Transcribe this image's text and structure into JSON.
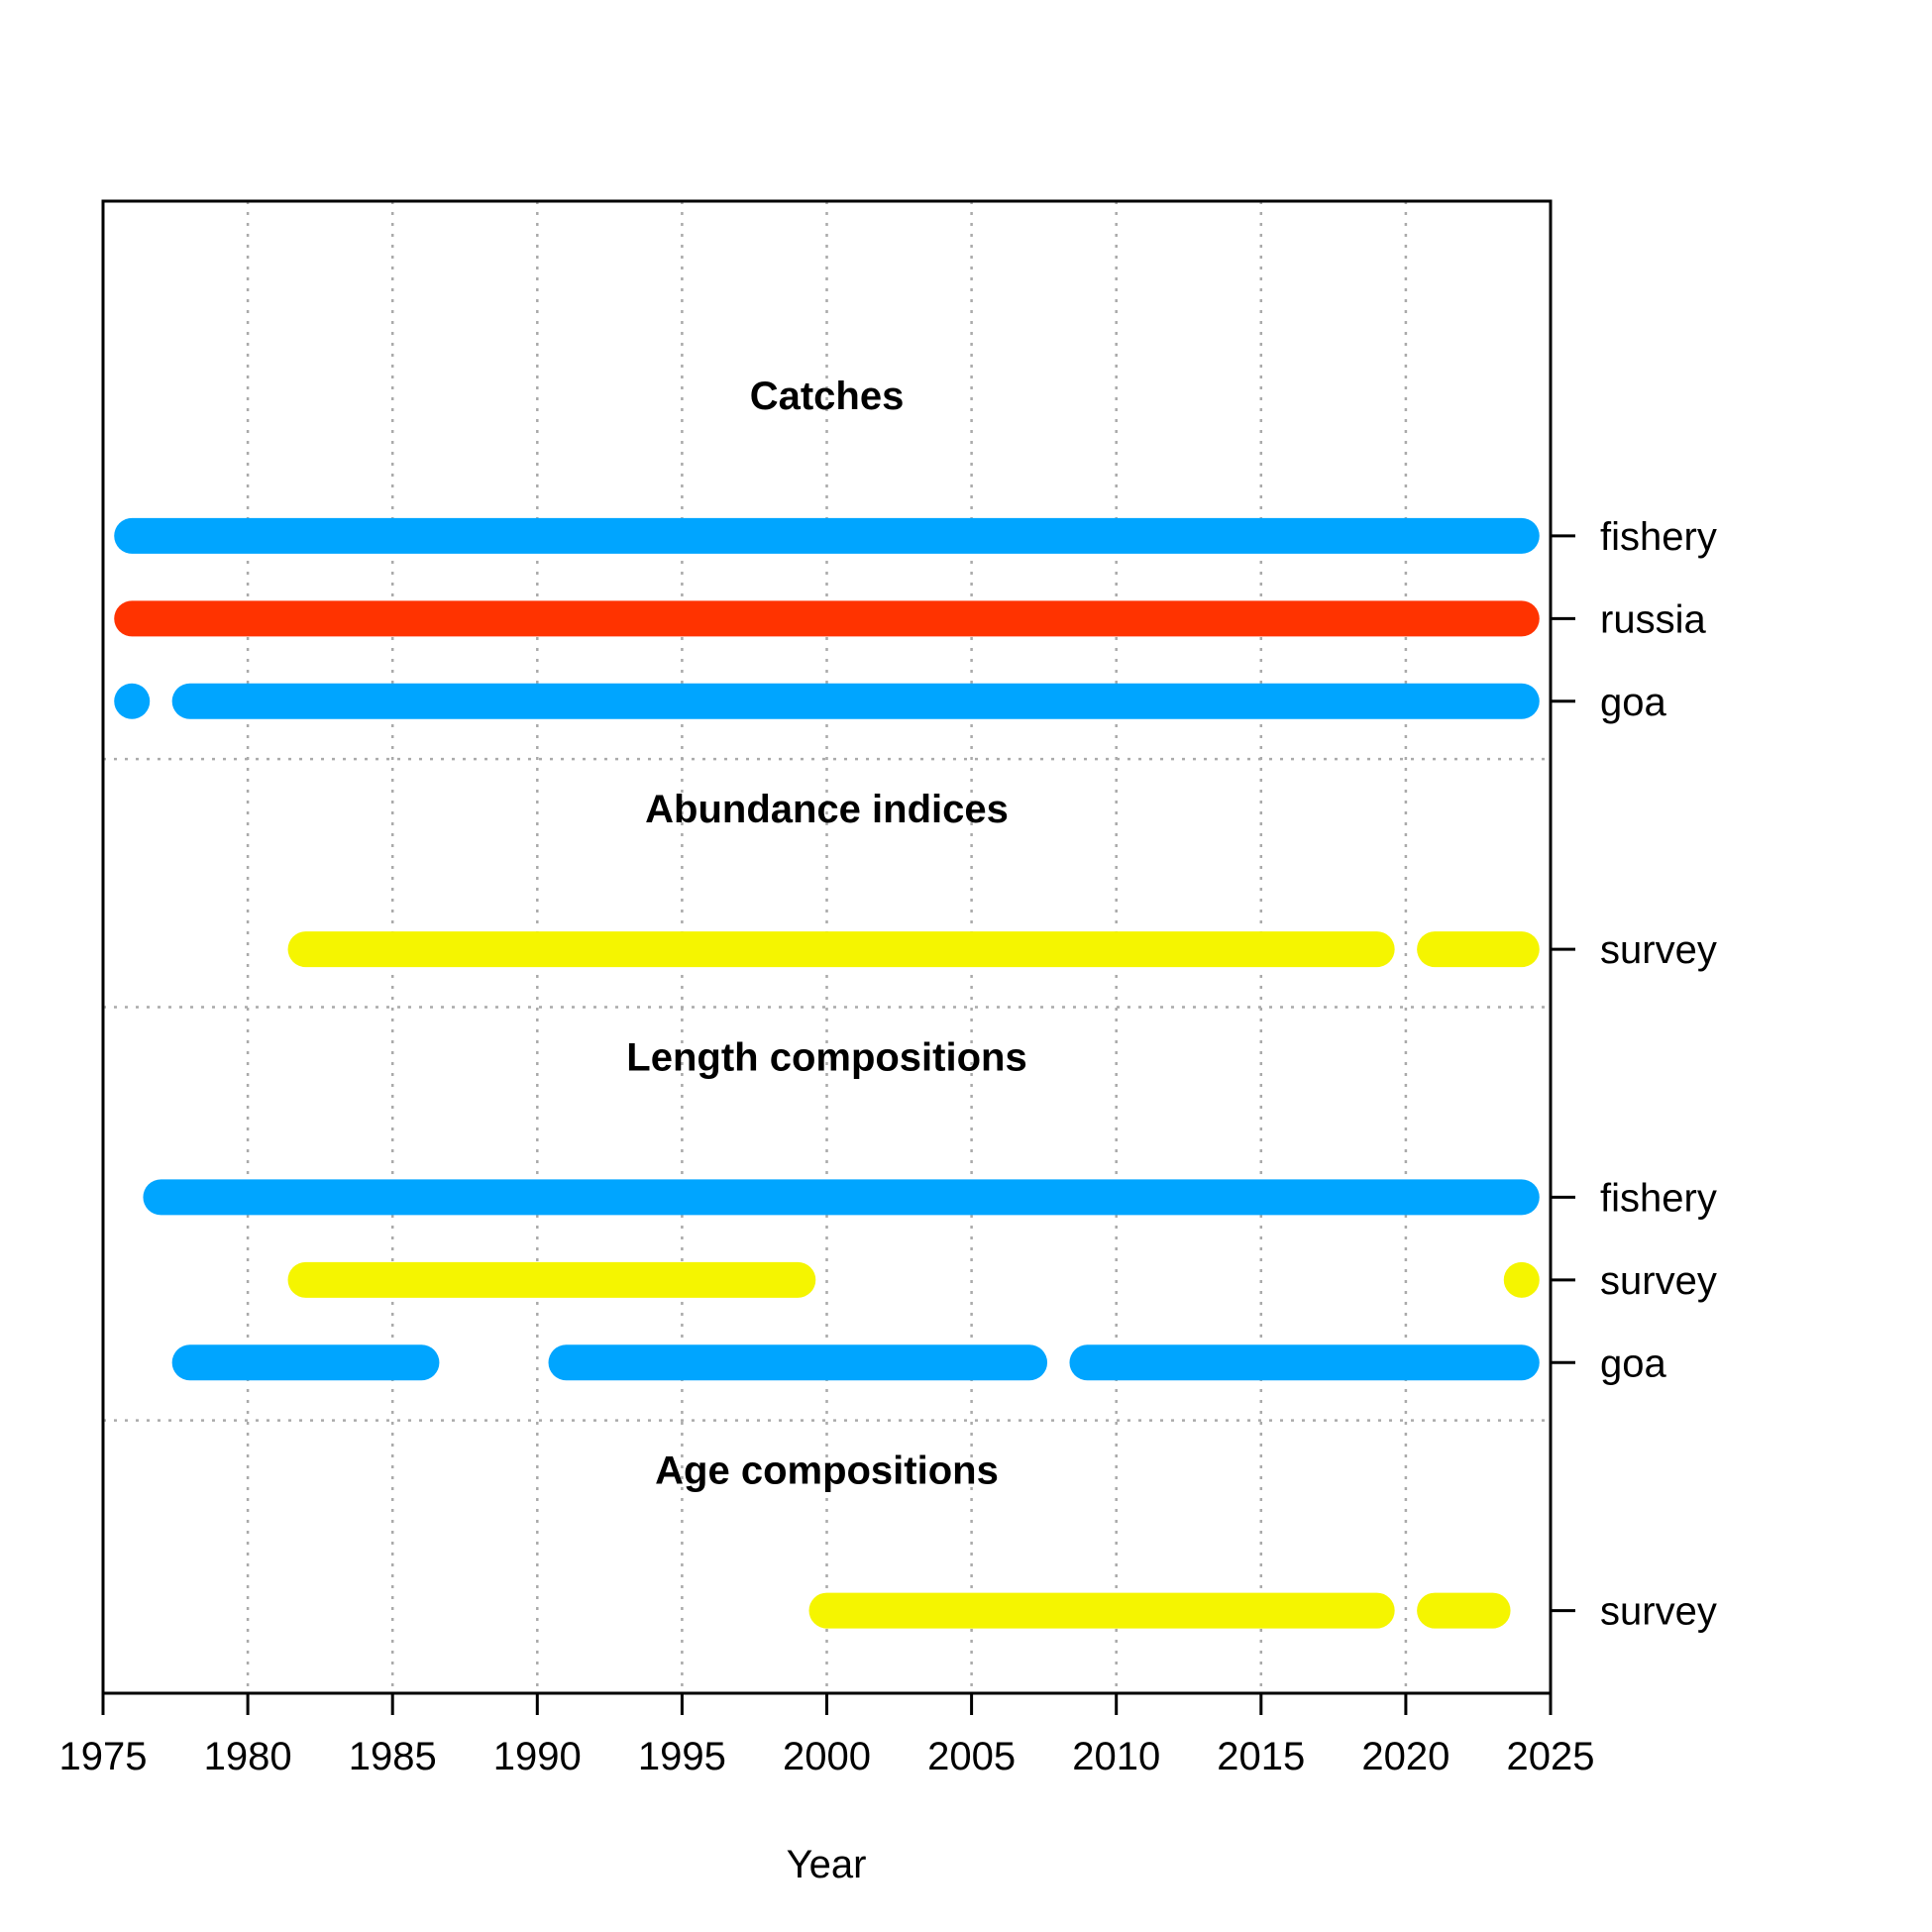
{
  "chart_data": {
    "type": "timeline",
    "xlabel": "Year",
    "xlim": [
      1975,
      2025
    ],
    "x_ticks": [
      "1975",
      "1980",
      "1985",
      "1990",
      "1995",
      "2000",
      "2005",
      "2010",
      "2015",
      "2020",
      "2025"
    ],
    "grid": true,
    "groups": [
      {
        "title": "Catches",
        "rows": [
          {
            "label": "fishery",
            "color": "#00A5FF",
            "segments": [
              [
                1976,
                2024
              ]
            ]
          },
          {
            "label": "russia",
            "color": "#FF3300",
            "segments": [
              [
                1976,
                2024
              ]
            ]
          },
          {
            "label": "goa",
            "color": "#00A5FF",
            "segments": [
              [
                1976,
                1976
              ],
              [
                1978,
                2024
              ]
            ]
          }
        ]
      },
      {
        "title": "Abundance indices",
        "rows": [
          {
            "label": "survey",
            "color": "#F5F500",
            "segments": [
              [
                1982,
                2019
              ],
              [
                2021,
                2024
              ]
            ]
          }
        ]
      },
      {
        "title": "Length compositions",
        "rows": [
          {
            "label": "fishery",
            "color": "#00A5FF",
            "segments": [
              [
                1977,
                2024
              ]
            ]
          },
          {
            "label": "survey",
            "color": "#F5F500",
            "segments": [
              [
                1982,
                1999
              ],
              [
                2024,
                2024
              ]
            ]
          },
          {
            "label": "goa",
            "color": "#00A5FF",
            "segments": [
              [
                1978,
                1986
              ],
              [
                1991,
                2007
              ],
              [
                2009,
                2024
              ]
            ]
          }
        ]
      },
      {
        "title": "Age compositions",
        "rows": [
          {
            "label": "survey",
            "color": "#F5F500",
            "segments": [
              [
                2000,
                2019
              ],
              [
                2021,
                2023
              ]
            ]
          }
        ]
      }
    ]
  }
}
